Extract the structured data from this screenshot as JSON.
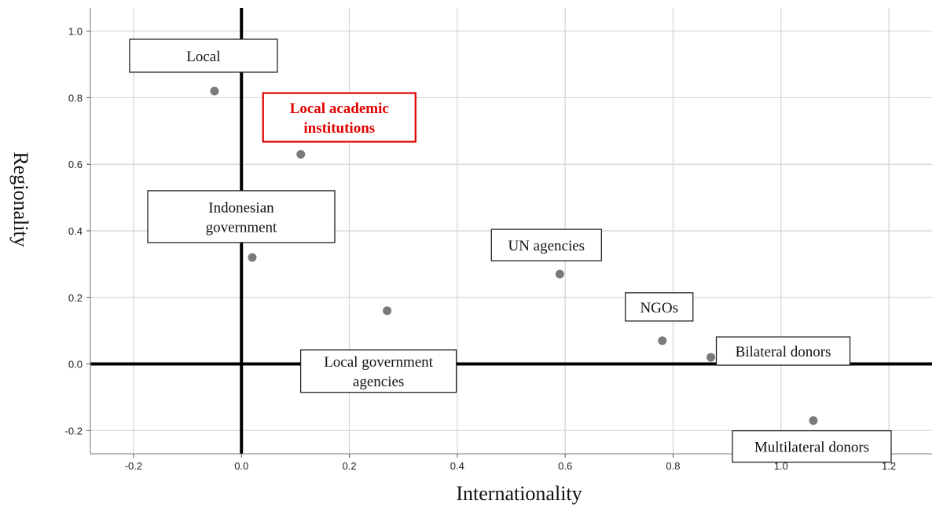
{
  "chart_data": {
    "type": "scatter",
    "title": "",
    "xlabel": "Internationality",
    "ylabel": "Regionality",
    "xlim": [
      -0.28,
      1.28
    ],
    "ylim": [
      -0.27,
      1.07
    ],
    "xticks": [
      "-0.2",
      "0.0",
      "0.2",
      "0.4",
      "0.6",
      "0.8",
      "1.0",
      "1.2"
    ],
    "yticks": [
      "-0.2",
      "0.0",
      "0.2",
      "0.4",
      "0.6",
      "0.8",
      "1.0"
    ],
    "grid": true,
    "reference_lines": {
      "x": 0,
      "y": 0
    },
    "point_color": "#7a7a7a",
    "highlight_color": "#e00000",
    "points": [
      {
        "label_lines": [
          "Local"
        ],
        "x": -0.05,
        "y": 0.82,
        "highlight": false
      },
      {
        "label_lines": [
          "Local academic",
          "institutions"
        ],
        "x": 0.11,
        "y": 0.63,
        "highlight": true
      },
      {
        "label_lines": [
          "Indonesian",
          "government"
        ],
        "x": 0.02,
        "y": 0.32,
        "highlight": false
      },
      {
        "label_lines": [
          "Local government",
          "agencies"
        ],
        "x": 0.27,
        "y": 0.16,
        "highlight": false
      },
      {
        "label_lines": [
          "UN agencies"
        ],
        "x": 0.59,
        "y": 0.27,
        "highlight": false
      },
      {
        "label_lines": [
          "NGOs"
        ],
        "x": 0.78,
        "y": 0.07,
        "highlight": false
      },
      {
        "label_lines": [
          "Bilateral donors"
        ],
        "x": 0.87,
        "y": 0.02,
        "highlight": false
      },
      {
        "label_lines": [
          "Multilateral donors"
        ],
        "x": 1.06,
        "y": -0.17,
        "highlight": false
      }
    ]
  }
}
